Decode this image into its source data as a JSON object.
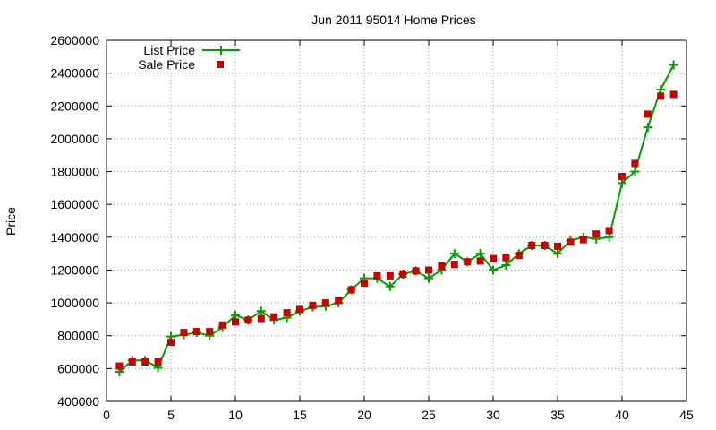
{
  "chart_data": {
    "type": "line",
    "title": "Jun 2011 95014 Home Prices",
    "xlabel": "",
    "ylabel": "Price",
    "xlim": [
      0,
      45
    ],
    "ylim": [
      400000,
      2600000
    ],
    "x_ticks": [
      0,
      5,
      10,
      15,
      20,
      25,
      30,
      35,
      40,
      45
    ],
    "y_ticks": [
      400000,
      600000,
      800000,
      1000000,
      1200000,
      1400000,
      1600000,
      1800000,
      2000000,
      2200000,
      2400000,
      2600000
    ],
    "grid": true,
    "legend_position": "top-left",
    "series": [
      {
        "name": "List Price",
        "style": "line-with-plus-markers",
        "color": "#00a000",
        "x": [
          1,
          2,
          3,
          4,
          5,
          6,
          7,
          8,
          9,
          10,
          11,
          12,
          13,
          14,
          15,
          16,
          17,
          18,
          19,
          20,
          21,
          22,
          23,
          24,
          25,
          26,
          27,
          28,
          29,
          30,
          31,
          32,
          33,
          34,
          35,
          36,
          37,
          38,
          39,
          40,
          41,
          42,
          43,
          44
        ],
        "y": [
          580000,
          650000,
          650000,
          605000,
          795000,
          805000,
          820000,
          800000,
          850000,
          925000,
          895000,
          950000,
          895000,
          910000,
          950000,
          975000,
          980000,
          1000000,
          1080000,
          1150000,
          1150000,
          1100000,
          1175000,
          1195000,
          1150000,
          1200000,
          1300000,
          1250000,
          1300000,
          1200000,
          1230000,
          1300000,
          1350000,
          1350000,
          1300000,
          1380000,
          1400000,
          1390000,
          1400000,
          1730000,
          1800000,
          2070000,
          2300000,
          2450000
        ]
      },
      {
        "name": "Sale Price",
        "style": "square-markers",
        "color": "#cc0000",
        "x": [
          1,
          2,
          3,
          4,
          5,
          6,
          7,
          8,
          9,
          10,
          11,
          12,
          13,
          14,
          15,
          16,
          17,
          18,
          19,
          20,
          21,
          22,
          23,
          24,
          25,
          26,
          27,
          28,
          29,
          30,
          31,
          32,
          33,
          34,
          35,
          36,
          37,
          38,
          39,
          40,
          41,
          42,
          43,
          44
        ],
        "y": [
          615000,
          640000,
          640000,
          640000,
          760000,
          820000,
          825000,
          825000,
          865000,
          885000,
          895000,
          905000,
          915000,
          940000,
          960000,
          985000,
          1000000,
          1015000,
          1080000,
          1120000,
          1165000,
          1165000,
          1175000,
          1195000,
          1200000,
          1225000,
          1235000,
          1250000,
          1255000,
          1270000,
          1275000,
          1290000,
          1350000,
          1350000,
          1345000,
          1370000,
          1385000,
          1420000,
          1440000,
          1770000,
          1850000,
          2150000,
          2260000,
          2270000
        ]
      }
    ]
  }
}
